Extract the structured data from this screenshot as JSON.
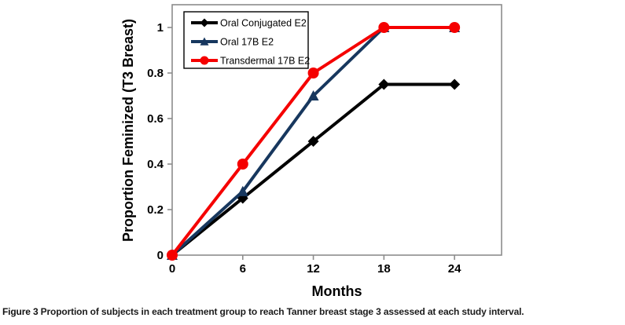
{
  "figure": {
    "caption_label": "Figure 3",
    "caption_text": "Proportion of subjects in each treatment group to reach Tanner breast stage 3 assessed at each study interval."
  },
  "chart_data": {
    "type": "line",
    "title": "",
    "xlabel": "Months",
    "ylabel": "Proportion Feminized (T3 Breast)",
    "x": [
      0,
      6,
      12,
      18,
      24
    ],
    "xtick_labels": [
      "0",
      "6",
      "12",
      "18",
      "24"
    ],
    "yticks": [
      0,
      0.2,
      0.4,
      0.6,
      0.8,
      1
    ],
    "ytick_labels": [
      "0",
      "0.2",
      "0.4",
      "0.6",
      "0.8",
      "1"
    ],
    "xlim": [
      0,
      28
    ],
    "ylim": [
      0,
      1.1
    ],
    "grid": false,
    "legend_position": "top-left-inside",
    "axis_color": "#8c8c8c",
    "series": [
      {
        "name": "Oral Conjugated E2",
        "color": "#000000",
        "marker": "diamond",
        "values": [
          0,
          0.25,
          0.5,
          0.75,
          0.75
        ]
      },
      {
        "name": "Oral 17B E2",
        "color": "#17375E",
        "marker": "triangle",
        "values": [
          0,
          0.28,
          0.7,
          1,
          1
        ]
      },
      {
        "name": "Transdermal 17B E2",
        "color": "#F50000",
        "marker": "circle",
        "values": [
          0,
          0.4,
          0.8,
          1,
          1
        ]
      }
    ]
  }
}
